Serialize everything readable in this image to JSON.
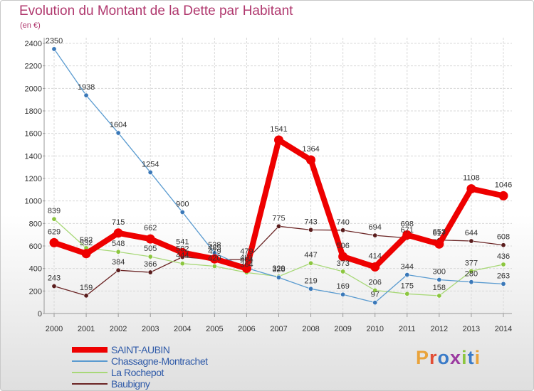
{
  "title": "Evolution du Montant de la Dette par Habitant",
  "unit_label": "(en €)",
  "logo": {
    "text": "Proxiti",
    "letter_colors": [
      "#e9a33b",
      "#e24e35",
      "#3a7bc8",
      "#9b3aa0",
      "#8cc63f",
      "#3a7bc8",
      "#e9a33b"
    ]
  },
  "chart_data": {
    "type": "line",
    "x": [
      2000,
      2001,
      2002,
      2003,
      2004,
      2005,
      2006,
      2007,
      2008,
      2009,
      2010,
      2011,
      2012,
      2013,
      2014
    ],
    "ylim": [
      0,
      2400
    ],
    "yticks": [
      0,
      200,
      400,
      600,
      800,
      1000,
      1200,
      1400,
      1600,
      1800,
      2000,
      2200,
      2400
    ],
    "grid": true,
    "series": [
      {
        "name": "Baubigny",
        "color": "#6b2525",
        "point_color": "#5a1d1d",
        "values": [
          243,
          159,
          384,
          366,
          502,
          479,
          479,
          775,
          743,
          740,
          694,
          671,
          653,
          644,
          608
        ]
      },
      {
        "name": "La Rochepot",
        "color": "#a8d878",
        "point_color": "#8cc63f",
        "values": [
          839,
          582,
          548,
          505,
          444,
          420,
          364,
          329,
          447,
          373,
          206,
          175,
          158,
          377,
          436
        ]
      },
      {
        "name": "Chassagne-Montrachet",
        "color": "#5a9bd0",
        "point_color": "#3a78b8",
        "values": [
          2350,
          1938,
          1604,
          1254,
          900,
          538,
          404,
          320,
          219,
          169,
          97,
          344,
          300,
          280,
          263
        ]
      },
      {
        "name": "SAINT-AUBIN",
        "color": "#ee0000",
        "point_color": "#ee0000",
        "values": [
          629,
          532,
          715,
          662,
          541,
          485,
          401,
          1541,
          1364,
          506,
          414,
          698,
          617,
          1108,
          1046
        ]
      }
    ]
  }
}
